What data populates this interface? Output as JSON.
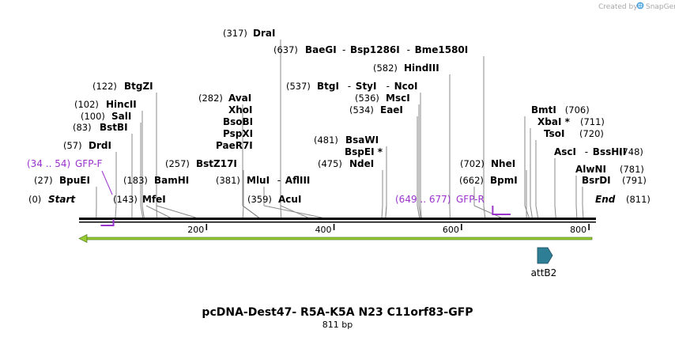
{
  "credit": {
    "text": "Created by",
    "brand": "SnapGene"
  },
  "title": "pcDNA-Dest47- R5A-K5A N23 C11orf83-GFP",
  "subtitle": "811 bp",
  "map": {
    "length": 811,
    "ticks": [
      "200",
      "400",
      "600",
      "800"
    ]
  },
  "ends": {
    "start": {
      "pos": "(0)",
      "label": "Start"
    },
    "end": {
      "pos": "(811)",
      "label": "End"
    }
  },
  "enzymes": [
    {
      "key": "drai",
      "pos": "(317)",
      "name": "DraI",
      "bp": 317
    },
    {
      "key": "baegi",
      "pos": "(637)",
      "name": "BaeGI",
      "extra": [
        "Bsp1286I",
        "Bme1580I"
      ],
      "bp": 637
    },
    {
      "key": "hindiii",
      "pos": "(582)",
      "name": "HindIII",
      "bp": 582
    },
    {
      "key": "btgzi",
      "pos": "(122)",
      "name": "BtgZI",
      "bp": 122
    },
    {
      "key": "btgi",
      "pos": "(537)",
      "name": "BtgI",
      "extra": [
        "StyI",
        "NcoI"
      ],
      "bp": 537
    },
    {
      "key": "avai",
      "pos": "(282)",
      "name": "AvaI",
      "bp": 282
    },
    {
      "key": "msci",
      "pos": "(536)",
      "name": "MscI",
      "bp": 536
    },
    {
      "key": "hincii",
      "pos": "(102)",
      "name": "HincII",
      "bp": 102
    },
    {
      "key": "xhoi",
      "name": "XhoI",
      "bp": 282
    },
    {
      "key": "eaei",
      "pos": "(534)",
      "name": "EaeI",
      "bp": 534
    },
    {
      "key": "bmti",
      "name": "BmtI",
      "pos": "(706)",
      "bp": 706
    },
    {
      "key": "sali",
      "pos": "(100)",
      "name": "SalI",
      "bp": 100
    },
    {
      "key": "bsobi",
      "name": "BsoBI",
      "bp": 282
    },
    {
      "key": "xbai",
      "name": "XbaI *",
      "pos": "(711)",
      "bp": 711
    },
    {
      "key": "bstbi",
      "pos": "(83)",
      "name": "BstBI",
      "bp": 83
    },
    {
      "key": "pspxi",
      "name": "PspXI",
      "bp": 282
    },
    {
      "key": "tsoi",
      "name": "TsoI",
      "pos": "(720)",
      "bp": 720
    },
    {
      "key": "paer7i",
      "name": "PaeR7I",
      "bp": 282
    },
    {
      "key": "bsawi",
      "pos": "(481)",
      "name": "BsaWI",
      "bp": 481
    },
    {
      "key": "drdi",
      "pos": "(57)",
      "name": "DrdI",
      "bp": 57
    },
    {
      "key": "bspei",
      "name": "BspEI *",
      "bp": 481
    },
    {
      "key": "asci",
      "name": "AscI",
      "extra": [
        "BssHII"
      ],
      "pos": "(748)",
      "bp": 748
    },
    {
      "key": "bstz17i",
      "pos": "(257)",
      "name": "BstZ17I",
      "bp": 257
    },
    {
      "key": "ndei",
      "pos": "(475)",
      "name": "NdeI",
      "bp": 475
    },
    {
      "key": "nhei",
      "pos": "(702)",
      "name": "NheI",
      "bp": 702
    },
    {
      "key": "alwni",
      "name": "AlwNI",
      "pos": "(781)",
      "bp": 781
    },
    {
      "key": "bpuei",
      "pos": "(27)",
      "name": "BpuEI",
      "bp": 27
    },
    {
      "key": "bamhi",
      "pos": "(183)",
      "name": "BamHI",
      "bp": 183
    },
    {
      "key": "mlui",
      "pos": "(381)",
      "name": "MluI",
      "extra": [
        "AflIII"
      ],
      "bp": 381
    },
    {
      "key": "bpmi",
      "pos": "(662)",
      "name": "BpmI",
      "bp": 662
    },
    {
      "key": "bsrdi",
      "name": "BsrDI",
      "pos": "(791)",
      "bp": 791
    },
    {
      "key": "mfei",
      "pos": "(143)",
      "name": "MfeI",
      "bp": 143
    },
    {
      "key": "acui",
      "pos": "(359)",
      "name": "AcuI",
      "bp": 359
    }
  ],
  "primers": [
    {
      "key": "gfp-f",
      "range": "(34 .. 54)",
      "name": "GFP-F",
      "start": 34,
      "end": 54,
      "dir": "forward"
    },
    {
      "key": "gfp-r",
      "range": "(649 .. 677)",
      "name": "GFP-R",
      "start": 649,
      "end": 677,
      "dir": "reverse"
    }
  ],
  "features": [
    {
      "key": "attb2",
      "name": "attB2",
      "start": 718,
      "end": 742,
      "color": "#2e7f96"
    }
  ],
  "colors": {
    "orf_arrow": "#99cc33",
    "primer": "#9933cc",
    "feature": "#2e7f96",
    "brand": "#4aa3df"
  }
}
